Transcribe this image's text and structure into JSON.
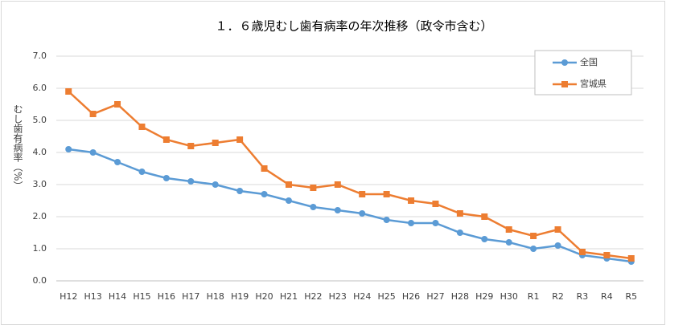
{
  "chart_data": {
    "type": "line",
    "title": "１．６歳児むし歯有病率の年次推移（政令市含む）",
    "y_label": "むし歯有病率（%）",
    "categories": [
      "H12",
      "H13",
      "H14",
      "H15",
      "H16",
      "H17",
      "H18",
      "H19",
      "H20",
      "H21",
      "H22",
      "H23",
      "H24",
      "H25",
      "H26",
      "H27",
      "H28",
      "H29",
      "H30",
      "R1",
      "R2",
      "R3",
      "R4",
      "R5"
    ],
    "series": [
      {
        "name": "全国",
        "color": "#5b9bd5",
        "marker": "circle",
        "values": [
          4.1,
          4.0,
          3.7,
          3.4,
          3.2,
          3.1,
          3.0,
          2.8,
          2.7,
          2.5,
          2.3,
          2.2,
          2.1,
          1.9,
          1.8,
          1.8,
          1.5,
          1.3,
          1.2,
          1.0,
          1.1,
          0.8,
          0.7,
          0.6
        ]
      },
      {
        "name": "宮城県",
        "color": "#ed7d31",
        "marker": "square",
        "values": [
          5.9,
          5.2,
          5.5,
          4.8,
          4.4,
          4.2,
          4.3,
          4.4,
          3.5,
          3.0,
          2.9,
          3.0,
          2.7,
          2.7,
          2.5,
          2.4,
          2.1,
          2.0,
          1.6,
          1.4,
          1.6,
          0.9,
          0.8,
          0.7
        ]
      }
    ],
    "ylim": [
      0,
      7
    ],
    "yticks": [
      {
        "value": 0,
        "label": "0.0"
      },
      {
        "value": 1,
        "label": "1.0"
      },
      {
        "value": 2,
        "label": "2.0"
      },
      {
        "value": 3,
        "label": "3.0"
      },
      {
        "value": 4,
        "label": "4.0"
      },
      {
        "value": 5,
        "label": "5.0"
      },
      {
        "value": 6,
        "label": "6.0"
      },
      {
        "value": 7,
        "label": "7.0"
      }
    ],
    "grid": true,
    "legend": "top-right"
  }
}
